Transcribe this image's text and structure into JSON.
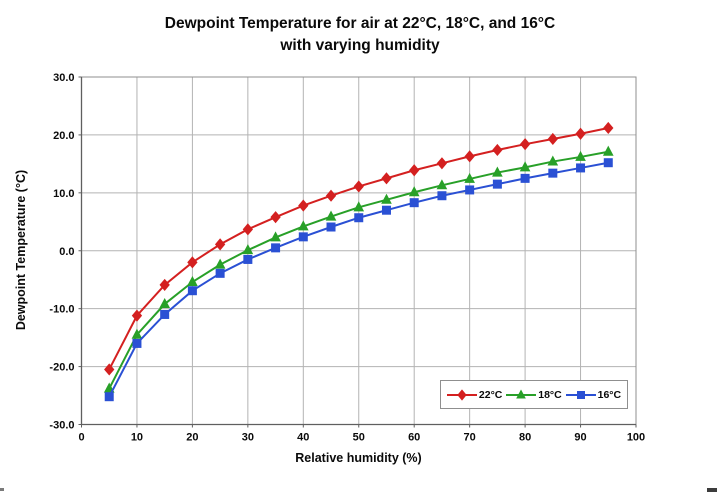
{
  "title": {
    "line1": "Dewpoint Temperature for air at 22°C, 18°C, and 16°C",
    "line2": "with varying humidity"
  },
  "chart_data": {
    "type": "line",
    "title": "Dewpoint Temperature for air at 22°C, 18°C, and 16°C with varying humidity",
    "xlabel": "Relative humidity (%)",
    "ylabel": "Dewpoint Temperature (°C)",
    "xlim": [
      0,
      100
    ],
    "ylim": [
      -30,
      30
    ],
    "xticks": [
      0,
      10,
      20,
      30,
      40,
      50,
      60,
      70,
      80,
      90,
      100
    ],
    "yticks": [
      -30,
      -20,
      -10,
      0,
      10,
      20,
      30
    ],
    "ytick_labels": [
      "-30.0",
      "-20.0",
      "-10.0",
      "0.0",
      "10.0",
      "20.0",
      "30.0"
    ],
    "grid": true,
    "legend_position": "inside-bottom-right",
    "x": [
      5,
      10,
      15,
      20,
      25,
      30,
      35,
      40,
      45,
      50,
      55,
      60,
      65,
      70,
      75,
      80,
      85,
      90,
      95
    ],
    "series": [
      {
        "name": "22°C",
        "color": "#d42020",
        "marker": "diamond",
        "values": [
          -20.5,
          -11.2,
          -5.9,
          -2.0,
          1.1,
          3.7,
          5.8,
          7.8,
          9.5,
          11.1,
          12.5,
          13.9,
          15.1,
          16.3,
          17.4,
          18.4,
          19.3,
          20.2,
          21.2
        ]
      },
      {
        "name": "18°C",
        "color": "#28a028",
        "marker": "triangle",
        "values": [
          -23.8,
          -14.5,
          -9.2,
          -5.4,
          -2.4,
          0.1,
          2.3,
          4.2,
          5.9,
          7.5,
          8.8,
          10.1,
          11.3,
          12.4,
          13.5,
          14.4,
          15.4,
          16.2,
          17.1
        ]
      },
      {
        "name": "16°C",
        "color": "#2a50d4",
        "marker": "square",
        "values": [
          -25.2,
          -16.0,
          -11.0,
          -6.9,
          -3.9,
          -1.5,
          0.5,
          2.4,
          4.1,
          5.7,
          7.0,
          8.3,
          9.5,
          10.5,
          11.5,
          12.5,
          13.4,
          14.3,
          15.2
        ]
      }
    ],
    "colors": {
      "gridline": "#b3b3b3",
      "frame": "#8f8f8f",
      "axis": "#5f5f5f",
      "tick_label": "#0a0a0a"
    }
  }
}
